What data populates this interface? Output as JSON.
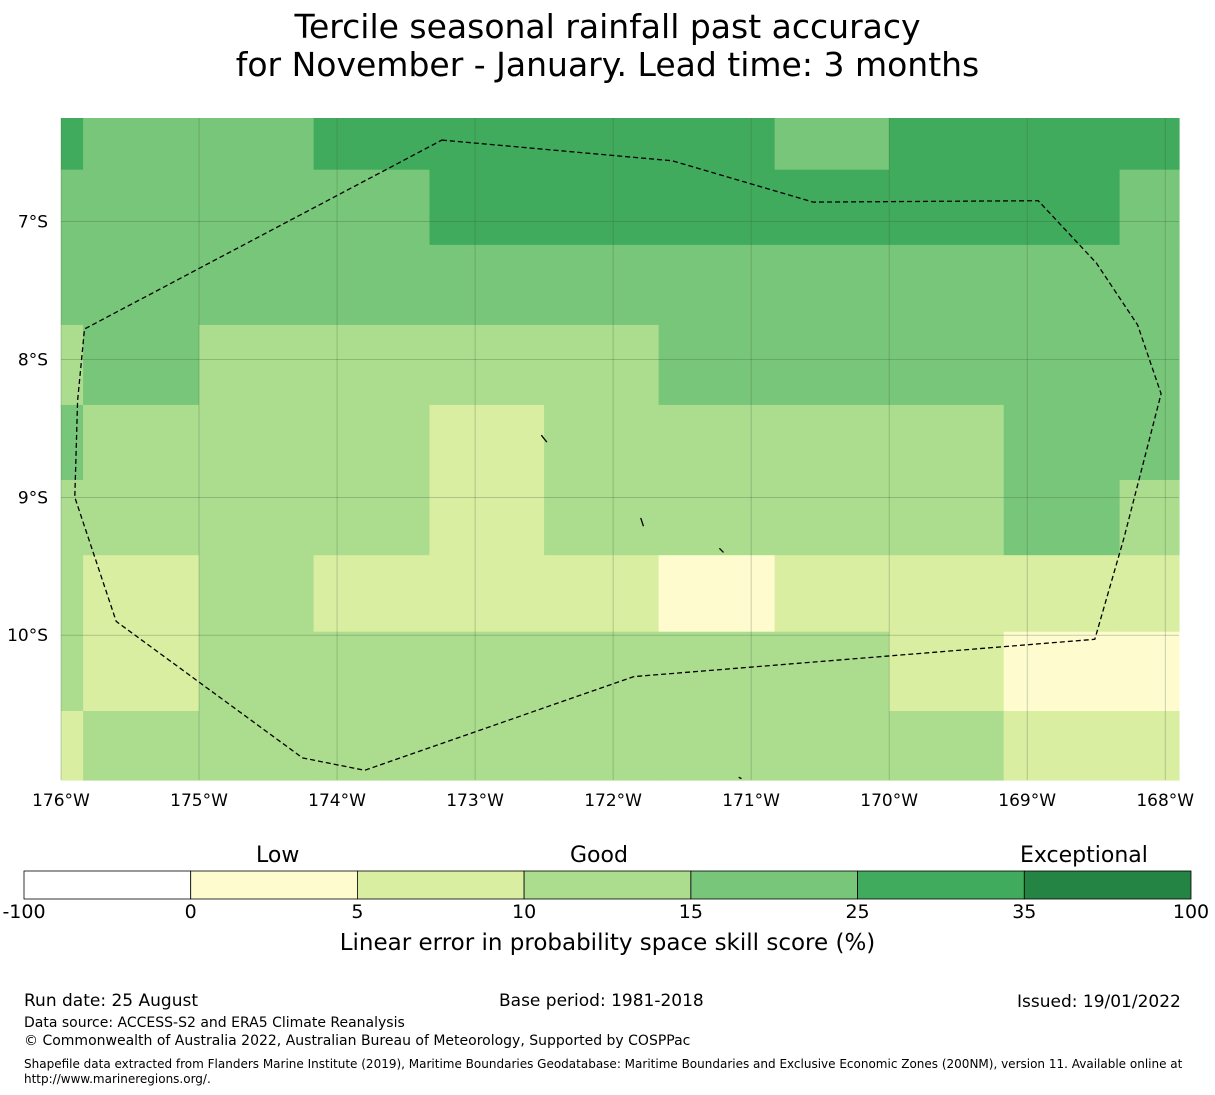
{
  "title": {
    "line1": "Tercile seasonal rainfall past accuracy",
    "line2": "for November - January. Lead time: 3 months"
  },
  "map": {
    "lon_labels": [
      "176°W",
      "175°W",
      "174°W",
      "173°W",
      "172°W",
      "171°W",
      "170°W",
      "169°W",
      "168°W"
    ],
    "lat_labels": [
      "7°S",
      "8°S",
      "9°S",
      "10°S"
    ],
    "lon_values": [
      -176,
      -175,
      -174,
      -173,
      -172,
      -171,
      -170,
      -169,
      -168
    ],
    "lat_values": [
      -7,
      -8,
      -9,
      -10
    ],
    "lon_range": [
      -176,
      -167.9
    ],
    "lat_range": [
      -6.25,
      -11.05
    ],
    "colors": {
      "neg": "#ffffff",
      "c0_5": "#fefccf",
      "c5_10": "#d9eea1",
      "c10_15": "#acdd8e",
      "c15_25": "#78c679",
      "c25_35": "#41ab5d",
      "c35_100": "#238443"
    },
    "grid_lon_edges": [
      -176,
      -175.84,
      -175,
      -174.17,
      -173.33,
      -172.5,
      -171.67,
      -170.83,
      -170,
      -169.17,
      -168.33,
      -167.9
    ],
    "grid_lat_edges": [
      -6.25,
      -6.625,
      -7.17,
      -7.75,
      -8.33,
      -8.875,
      -9.42,
      -9.975,
      -10.55,
      -11.05
    ],
    "grid_classes": [
      [
        5,
        4,
        4,
        5,
        5,
        5,
        5,
        4,
        5,
        5,
        5
      ],
      [
        4,
        4,
        4,
        4,
        5,
        5,
        5,
        5,
        5,
        5,
        4
      ],
      [
        4,
        4,
        4,
        4,
        4,
        4,
        4,
        4,
        4,
        4,
        4
      ],
      [
        3,
        4,
        3,
        3,
        3,
        3,
        4,
        4,
        4,
        4,
        4
      ],
      [
        4,
        3,
        3,
        3,
        2,
        3,
        3,
        3,
        3,
        4,
        4
      ],
      [
        3,
        3,
        3,
        3,
        2,
        3,
        3,
        3,
        3,
        4,
        3
      ],
      [
        3,
        2,
        3,
        2,
        2,
        2,
        1,
        2,
        2,
        2,
        2
      ],
      [
        3,
        2,
        3,
        3,
        3,
        3,
        3,
        3,
        2,
        1,
        1
      ],
      [
        2,
        3,
        3,
        3,
        3,
        3,
        3,
        3,
        3,
        2,
        2
      ]
    ],
    "eez_boundary": [
      [
        -173.24,
        -6.41
      ],
      [
        -171.57,
        -6.56
      ],
      [
        -170.55,
        -6.86
      ],
      [
        -168.92,
        -6.85
      ],
      [
        -168.5,
        -7.3
      ],
      [
        -168.2,
        -7.75
      ],
      [
        -168.03,
        -8.25
      ],
      [
        -168.3,
        -9.3
      ],
      [
        -168.51,
        -10.03
      ],
      [
        -171.85,
        -10.3
      ],
      [
        -173.8,
        -10.98
      ],
      [
        -174.25,
        -10.89
      ],
      [
        -175.6,
        -9.9
      ],
      [
        -175.9,
        -9.0
      ],
      [
        -175.88,
        -8.3
      ],
      [
        -175.83,
        -7.78
      ]
    ],
    "islands": [
      [
        [
          -172.52,
          -8.55
        ],
        [
          -172.48,
          -8.6
        ]
      ],
      [
        [
          -171.8,
          -9.15
        ],
        [
          -171.78,
          -9.21
        ]
      ],
      [
        [
          -171.23,
          -9.37
        ],
        [
          -171.2,
          -9.4
        ]
      ],
      [
        [
          -171.09,
          -11.03
        ],
        [
          -171.07,
          -11.04
        ]
      ]
    ]
  },
  "colorbar": {
    "category_labels": [
      "Low",
      "Good",
      "Exceptional"
    ],
    "ticks": [
      "-100",
      "0",
      "5",
      "10",
      "15",
      "25",
      "35",
      "100"
    ],
    "segment_colors": [
      "#ffffff",
      "#fefccf",
      "#d9eea1",
      "#acdd8e",
      "#78c679",
      "#41ab5d",
      "#238443"
    ],
    "title": "Linear error in probability space skill score (%)"
  },
  "footer": {
    "run_date": "Run date: 25 August",
    "base_period": "Base period: 1981-2018",
    "issued": "Issued: 19/01/2022",
    "data_source": "Data source: ACCESS-S2 and ERA5 Climate Reanalysis",
    "copyright": "© Commonwealth of Australia 2022, Australian Bureau of Meteorology, Supported by COSPPac",
    "shapefile_line1": "Shapefile data extracted from Flanders Marine Institute (2019), Maritime Boundaries Geodatabase: Maritime Boundaries and Exclusive Economic Zones (200NM), version 11. Available online at",
    "shapefile_line2": "http://www.marineregions.org/."
  }
}
